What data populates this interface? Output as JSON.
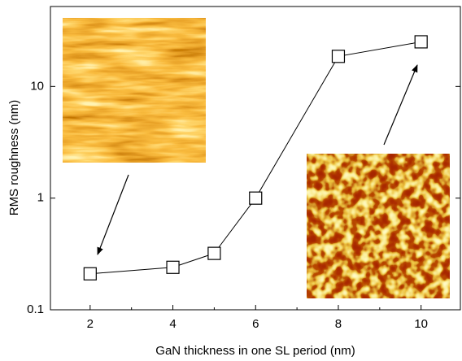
{
  "chart_data": {
    "type": "line",
    "x_label": "GaN thickness in one SL period (nm)",
    "y_label": "RMS roughness (nm)",
    "x": [
      2,
      4,
      5,
      6,
      8,
      10
    ],
    "series": [
      {
        "values": [
          0.21,
          0.24,
          0.32,
          1.0,
          18.6,
          25.1
        ],
        "color": "#000000",
        "marker": "square"
      }
    ],
    "xlim": [
      1.04,
      10.95
    ],
    "xticks": [
      2,
      4,
      6,
      8,
      10
    ],
    "xminorticks": [
      3,
      5,
      7,
      9
    ],
    "ylim": [
      0.1,
      52
    ],
    "yticks": [
      0.1,
      1,
      10
    ],
    "yscale": "log",
    "grid": false
  }
}
